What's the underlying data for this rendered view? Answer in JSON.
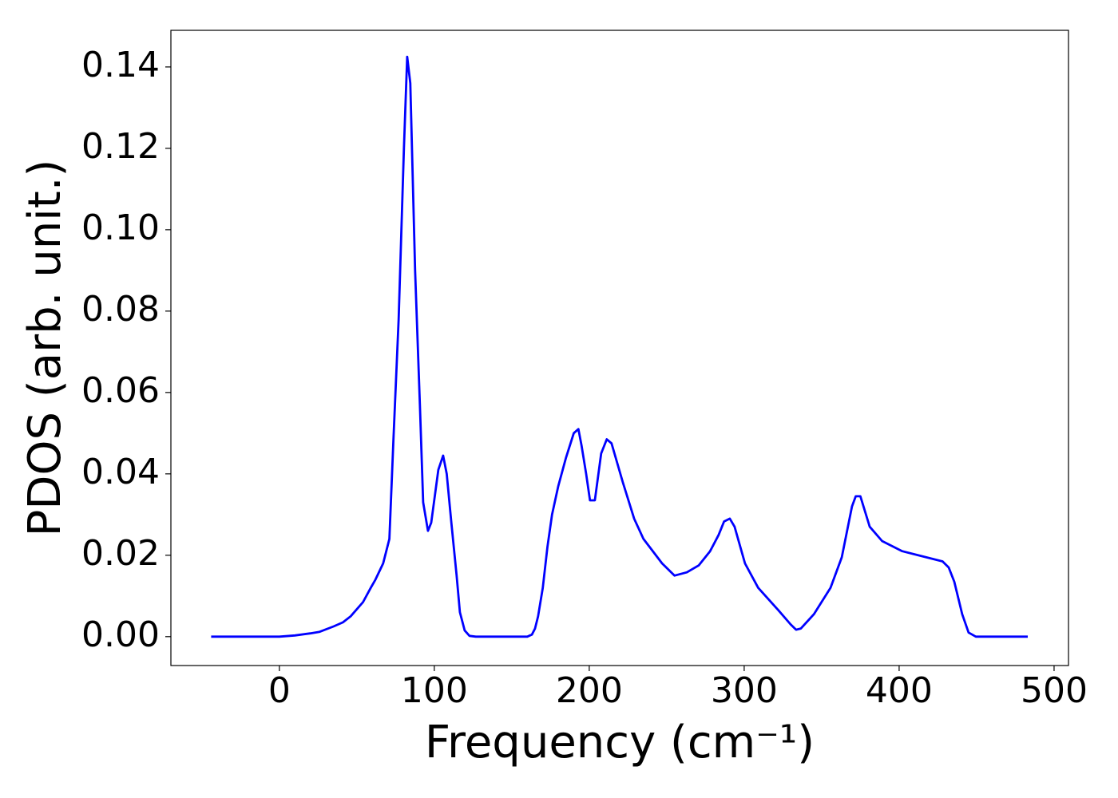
{
  "chart_data": {
    "type": "line",
    "x_label": "Frequency (cm⁻¹)",
    "y_label": "PDOS (arb. unit.)",
    "x": [
      -44,
      0,
      10,
      20,
      26,
      35,
      41,
      46,
      54,
      59,
      62,
      67,
      71,
      73.7,
      77,
      80.4,
      82.5,
      84.5,
      87.6,
      90.7,
      92.8,
      95.9,
      98,
      102.6,
      105.7,
      108,
      111,
      114.4,
      116.5,
      119.6,
      122.7,
      126.8,
      160,
      163,
      165,
      167,
      170,
      173,
      176,
      180,
      185,
      190,
      193,
      195,
      198,
      200.5,
      203.6,
      207.7,
      211.3,
      214.4,
      221.6,
      229,
      235,
      247,
      255,
      263,
      270.6,
      278,
      283.5,
      287,
      290.7,
      293.8,
      300.5,
      309,
      322,
      330,
      333.5,
      336.6,
      345,
      355.7,
      363,
      369.6,
      372,
      375,
      381,
      389,
      402,
      428,
      432,
      435.6,
      440.7,
      444.8,
      449.5,
      483
    ],
    "series": [
      {
        "name": "PDOS",
        "color": "#0000ff",
        "values": [
          0,
          0,
          0.0003,
          0.0008,
          0.0012,
          0.0025,
          0.0035,
          0.005,
          0.0085,
          0.012,
          0.014,
          0.018,
          0.024,
          0.049,
          0.078,
          0.12,
          0.1425,
          0.136,
          0.09,
          0.057,
          0.033,
          0.026,
          0.028,
          0.041,
          0.0445,
          0.04,
          0.028,
          0.015,
          0.006,
          0.0015,
          0.0002,
          0,
          0,
          0.0005,
          0.002,
          0.005,
          0.012,
          0.022,
          0.03,
          0.037,
          0.044,
          0.05,
          0.051,
          0.047,
          0.04,
          0.0335,
          0.0335,
          0.045,
          0.0485,
          0.0475,
          0.038,
          0.029,
          0.024,
          0.018,
          0.015,
          0.0158,
          0.0175,
          0.021,
          0.025,
          0.0283,
          0.029,
          0.027,
          0.018,
          0.012,
          0.0065,
          0.003,
          0.0017,
          0.002,
          0.0055,
          0.012,
          0.0195,
          0.032,
          0.0345,
          0.0345,
          0.027,
          0.0235,
          0.021,
          0.0185,
          0.017,
          0.0135,
          0.0055,
          0.001,
          0,
          0
        ]
      }
    ],
    "xlim": [
      -70,
      509.3
    ],
    "ylim": [
      -0.0071,
      0.149
    ],
    "xticks": [
      0,
      100,
      200,
      300,
      400,
      500
    ],
    "yticks": [
      {
        "value": 0,
        "label": "0.00"
      },
      {
        "value": 0.02,
        "label": "0.02"
      },
      {
        "value": 0.04,
        "label": "0.04"
      },
      {
        "value": 0.06,
        "label": "0.06"
      },
      {
        "value": 0.08,
        "label": "0.08"
      },
      {
        "value": 0.1,
        "label": "0.10"
      },
      {
        "value": 0.12,
        "label": "0.12"
      },
      {
        "value": 0.14,
        "label": "0.14"
      }
    ],
    "grid": false
  }
}
